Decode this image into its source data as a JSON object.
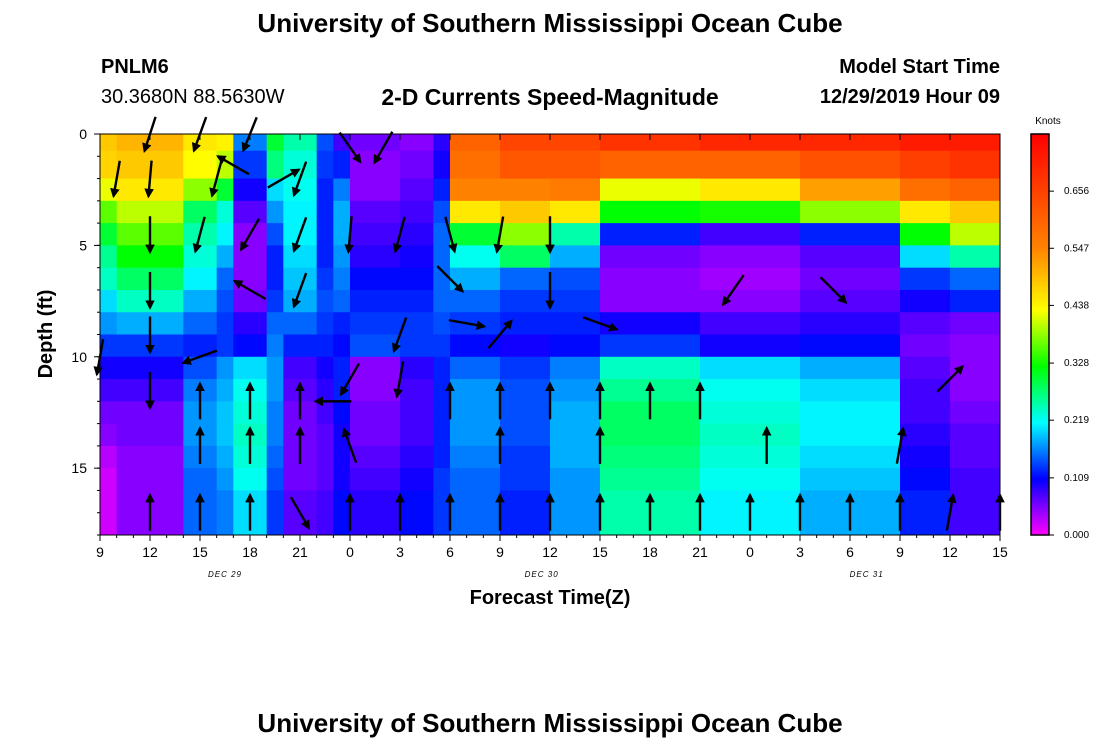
{
  "header": {
    "title": "University of Southern Mississippi Ocean Cube",
    "station": "PNLM6",
    "coords": "30.3680N 88.5630W",
    "subtitle": "2-D Currents Speed-Magnitude",
    "model_start_label": "Model Start Time",
    "model_start_value": "12/29/2019 Hour 09"
  },
  "footer": {
    "title": "University of Southern Mississippi Ocean Cube"
  },
  "chart_data": {
    "type": "heatmap",
    "title": "2-D Currents Speed-Magnitude",
    "xlabel": "Forecast Time(Z)",
    "ylabel": "Depth (ft)",
    "x_ticks": [
      "9",
      "12",
      "15",
      "18",
      "21",
      "0",
      "3",
      "6",
      "9",
      "12",
      "15",
      "18",
      "21",
      "0",
      "3",
      "6",
      "9",
      "12",
      "15"
    ],
    "x_tick_hours": [
      0,
      3,
      6,
      9,
      12,
      15,
      18,
      21,
      24,
      27,
      30,
      33,
      36,
      39,
      42,
      45,
      48,
      51,
      54
    ],
    "day_labels": [
      {
        "label": "DEC 29",
        "hour": 7.5
      },
      {
        "label": "DEC 30",
        "hour": 26.5
      },
      {
        "label": "DEC 31",
        "hour": 46
      }
    ],
    "xlim_hours": [
      0,
      54
    ],
    "y_ticks": [
      0,
      5,
      10,
      15
    ],
    "ylim": [
      0,
      18
    ],
    "y_inverted": true,
    "colorbar": {
      "unit": "Knots",
      "ticks": [
        "0.656",
        "0.547",
        "0.438",
        "0.328",
        "0.219",
        "0.109",
        "0.000"
      ],
      "tick_values": [
        0.656,
        0.547,
        0.438,
        0.328,
        0.219,
        0.109,
        0.0
      ],
      "range": [
        0,
        0.765
      ],
      "colors": [
        "#ff00ff",
        "#0000ff",
        "#00ffff",
        "#00ff00",
        "#ffff00",
        "#ff8000",
        "#ff0000"
      ]
    },
    "depth_rows": [
      0.0,
      1.5,
      2.5,
      3.5,
      4.5,
      5.5,
      6.5,
      7.5,
      8.5,
      9.5,
      10.5,
      11.5,
      12.5,
      13.5,
      14.5,
      15.5,
      16.5,
      17.5
    ],
    "speed_columns": [
      {
        "hours": [
          0,
          1
        ],
        "v": [
          0.48,
          0.47,
          0.42,
          0.36,
          0.3,
          0.26,
          0.24,
          0.2,
          0.17,
          0.13,
          0.1,
          0.08,
          0.06,
          0.05,
          0.03,
          0.02,
          0.02,
          0.02
        ]
      },
      {
        "hours": [
          1,
          5
        ],
        "v": [
          0.5,
          0.48,
          0.45,
          0.4,
          0.36,
          0.32,
          0.28,
          0.24,
          0.18,
          0.13,
          0.1,
          0.08,
          0.06,
          0.06,
          0.05,
          0.05,
          0.05,
          0.05
        ]
      },
      {
        "hours": [
          5,
          7
        ],
        "v": [
          0.45,
          0.43,
          0.38,
          0.28,
          0.25,
          0.23,
          0.21,
          0.18,
          0.15,
          0.12,
          0.14,
          0.16,
          0.17,
          0.17,
          0.16,
          0.15,
          0.15,
          0.15
        ]
      },
      {
        "hours": [
          7,
          8
        ],
        "v": [
          0.44,
          0.4,
          0.3,
          0.23,
          0.21,
          0.18,
          0.15,
          0.14,
          0.13,
          0.13,
          0.17,
          0.18,
          0.19,
          0.19,
          0.18,
          0.17,
          0.16,
          0.16
        ]
      },
      {
        "hours": [
          8,
          10
        ],
        "v": [
          0.16,
          0.13,
          0.1,
          0.07,
          0.05,
          0.05,
          0.05,
          0.06,
          0.09,
          0.11,
          0.2,
          0.22,
          0.23,
          0.24,
          0.23,
          0.22,
          0.2,
          0.2
        ]
      },
      {
        "hours": [
          10,
          11
        ],
        "v": [
          0.3,
          0.27,
          0.2,
          0.17,
          0.14,
          0.12,
          0.12,
          0.13,
          0.15,
          0.16,
          0.17,
          0.17,
          0.16,
          0.16,
          0.15,
          0.14,
          0.13,
          0.13
        ]
      },
      {
        "hours": [
          11,
          13
        ],
        "v": [
          0.25,
          0.23,
          0.22,
          0.21,
          0.21,
          0.2,
          0.19,
          0.18,
          0.15,
          0.12,
          0.08,
          0.07,
          0.06,
          0.06,
          0.06,
          0.06,
          0.07,
          0.07
        ]
      },
      {
        "hours": [
          13,
          14
        ],
        "v": [
          0.14,
          0.13,
          0.12,
          0.12,
          0.12,
          0.12,
          0.13,
          0.14,
          0.13,
          0.12,
          0.1,
          0.09,
          0.08,
          0.07,
          0.07,
          0.07,
          0.08,
          0.08
        ]
      },
      {
        "hours": [
          14,
          15
        ],
        "v": [
          0.08,
          0.12,
          0.16,
          0.18,
          0.18,
          0.17,
          0.16,
          0.15,
          0.12,
          0.11,
          0.12,
          0.12,
          0.11,
          0.1,
          0.1,
          0.1,
          0.11,
          0.11
        ]
      },
      {
        "hours": [
          15,
          18
        ],
        "v": [
          0.06,
          0.05,
          0.05,
          0.07,
          0.08,
          0.09,
          0.11,
          0.12,
          0.13,
          0.14,
          0.05,
          0.05,
          0.06,
          0.06,
          0.07,
          0.08,
          0.09,
          0.09
        ]
      },
      {
        "hours": [
          18,
          20
        ],
        "v": [
          0.05,
          0.06,
          0.07,
          0.08,
          0.09,
          0.1,
          0.11,
          0.12,
          0.13,
          0.13,
          0.09,
          0.08,
          0.08,
          0.08,
          0.09,
          0.1,
          0.11,
          0.11
        ]
      },
      {
        "hours": [
          20,
          21
        ],
        "v": [
          0.09,
          0.1,
          0.12,
          0.14,
          0.15,
          0.15,
          0.15,
          0.15,
          0.14,
          0.13,
          0.12,
          0.12,
          0.12,
          0.12,
          0.12,
          0.13,
          0.13,
          0.13
        ]
      },
      {
        "hours": [
          21,
          24
        ],
        "v": [
          0.6,
          0.58,
          0.55,
          0.45,
          0.3,
          0.22,
          0.18,
          0.15,
          0.13,
          0.11,
          0.15,
          0.17,
          0.17,
          0.17,
          0.16,
          0.15,
          0.15,
          0.15
        ]
      },
      {
        "hours": [
          24,
          27
        ],
        "v": [
          0.65,
          0.62,
          0.55,
          0.48,
          0.38,
          0.28,
          0.15,
          0.13,
          0.12,
          0.1,
          0.13,
          0.14,
          0.14,
          0.14,
          0.13,
          0.13,
          0.12,
          0.12
        ]
      },
      {
        "hours": [
          27,
          30
        ],
        "v": [
          0.65,
          0.62,
          0.56,
          0.45,
          0.25,
          0.18,
          0.14,
          0.13,
          0.12,
          0.11,
          0.16,
          0.17,
          0.18,
          0.18,
          0.18,
          0.17,
          0.17,
          0.17
        ]
      },
      {
        "hours": [
          30,
          36
        ],
        "v": [
          0.68,
          0.6,
          0.42,
          0.32,
          0.12,
          0.06,
          0.05,
          0.05,
          0.1,
          0.13,
          0.24,
          0.26,
          0.28,
          0.28,
          0.27,
          0.26,
          0.25,
          0.25
        ]
      },
      {
        "hours": [
          36,
          42
        ],
        "v": [
          0.7,
          0.6,
          0.45,
          0.33,
          0.08,
          0.05,
          0.04,
          0.05,
          0.08,
          0.1,
          0.2,
          0.22,
          0.23,
          0.24,
          0.23,
          0.22,
          0.21,
          0.21
        ]
      },
      {
        "hours": [
          42,
          48
        ],
        "v": [
          0.7,
          0.63,
          0.52,
          0.38,
          0.12,
          0.07,
          0.06,
          0.07,
          0.09,
          0.11,
          0.18,
          0.2,
          0.21,
          0.21,
          0.2,
          0.19,
          0.18,
          0.18
        ]
      },
      {
        "hours": [
          48,
          51
        ],
        "v": [
          0.72,
          0.66,
          0.58,
          0.45,
          0.32,
          0.2,
          0.13,
          0.1,
          0.07,
          0.06,
          0.07,
          0.08,
          0.08,
          0.09,
          0.1,
          0.11,
          0.12,
          0.12
        ]
      },
      {
        "hours": [
          51,
          54
        ],
        "v": [
          0.72,
          0.68,
          0.6,
          0.48,
          0.4,
          0.25,
          0.15,
          0.12,
          0.06,
          0.05,
          0.05,
          0.05,
          0.06,
          0.07,
          0.07,
          0.08,
          0.08,
          0.08
        ]
      }
    ],
    "arrows": [
      {
        "hour": 3,
        "depth": 0,
        "dir": 198
      },
      {
        "hour": 6,
        "depth": 0,
        "dir": 200
      },
      {
        "hour": 9,
        "depth": 0,
        "dir": 202
      },
      {
        "hour": 1,
        "depth": 2,
        "dir": 190
      },
      {
        "hour": 3,
        "depth": 2,
        "dir": 185
      },
      {
        "hour": 7,
        "depth": 2,
        "dir": 195
      },
      {
        "hour": 8,
        "depth": 1.4,
        "dir": 300
      },
      {
        "hour": 11,
        "depth": 2,
        "dir": 60
      },
      {
        "hour": 12,
        "depth": 2,
        "dir": 200
      },
      {
        "hour": 15,
        "depth": 0.6,
        "dir": 145
      },
      {
        "hour": 17,
        "depth": 0.6,
        "dir": 210
      },
      {
        "hour": 3,
        "depth": 4.5,
        "dir": 180
      },
      {
        "hour": 6,
        "depth": 4.5,
        "dir": 195
      },
      {
        "hour": 9,
        "depth": 4.5,
        "dir": 210
      },
      {
        "hour": 12,
        "depth": 4.5,
        "dir": 200
      },
      {
        "hour": 15,
        "depth": 4.5,
        "dir": 185
      },
      {
        "hour": 18,
        "depth": 4.5,
        "dir": 195
      },
      {
        "hour": 21,
        "depth": 4.5,
        "dir": 165
      },
      {
        "hour": 24,
        "depth": 4.5,
        "dir": 190
      },
      {
        "hour": 27,
        "depth": 4.5,
        "dir": 180
      },
      {
        "hour": 3,
        "depth": 7,
        "dir": 180
      },
      {
        "hour": 9,
        "depth": 7,
        "dir": 300
      },
      {
        "hour": 12,
        "depth": 7,
        "dir": 200
      },
      {
        "hour": 21,
        "depth": 6.5,
        "dir": 135
      },
      {
        "hour": 27,
        "depth": 7,
        "dir": 180
      },
      {
        "hour": 38,
        "depth": 7,
        "dir": 215
      },
      {
        "hour": 44,
        "depth": 7,
        "dir": 135
      },
      {
        "hour": 3,
        "depth": 9,
        "dir": 180
      },
      {
        "hour": 0,
        "depth": 10,
        "dir": 190
      },
      {
        "hour": 6,
        "depth": 10,
        "dir": 250
      },
      {
        "hour": 18,
        "depth": 9,
        "dir": 200
      },
      {
        "hour": 22,
        "depth": 8.5,
        "dir": 100
      },
      {
        "hour": 24,
        "depth": 9,
        "dir": 40
      },
      {
        "hour": 30,
        "depth": 8.5,
        "dir": 110
      },
      {
        "hour": 3,
        "depth": 11.5,
        "dir": 180
      },
      {
        "hour": 6,
        "depth": 12,
        "dir": 0
      },
      {
        "hour": 9,
        "depth": 12,
        "dir": 0
      },
      {
        "hour": 12,
        "depth": 12,
        "dir": 0
      },
      {
        "hour": 14,
        "depth": 12,
        "dir": 270
      },
      {
        "hour": 15,
        "depth": 11,
        "dir": 210
      },
      {
        "hour": 18,
        "depth": 11,
        "dir": 190
      },
      {
        "hour": 21,
        "depth": 12,
        "dir": 0
      },
      {
        "hour": 24,
        "depth": 12,
        "dir": 0
      },
      {
        "hour": 27,
        "depth": 12,
        "dir": 0
      },
      {
        "hour": 30,
        "depth": 12,
        "dir": 0
      },
      {
        "hour": 33,
        "depth": 12,
        "dir": 0
      },
      {
        "hour": 36,
        "depth": 12,
        "dir": 0
      },
      {
        "hour": 51,
        "depth": 11,
        "dir": 45
      },
      {
        "hour": 6,
        "depth": 14,
        "dir": 0
      },
      {
        "hour": 9,
        "depth": 14,
        "dir": 0
      },
      {
        "hour": 12,
        "depth": 14,
        "dir": 0
      },
      {
        "hour": 15,
        "depth": 14,
        "dir": 340
      },
      {
        "hour": 24,
        "depth": 14,
        "dir": 0
      },
      {
        "hour": 30,
        "depth": 14,
        "dir": 0
      },
      {
        "hour": 40,
        "depth": 14,
        "dir": 0
      },
      {
        "hour": 48,
        "depth": 14,
        "dir": 10
      },
      {
        "hour": 3,
        "depth": 17,
        "dir": 0
      },
      {
        "hour": 6,
        "depth": 17,
        "dir": 0
      },
      {
        "hour": 9,
        "depth": 17,
        "dir": 0
      },
      {
        "hour": 12,
        "depth": 17,
        "dir": 150
      },
      {
        "hour": 15,
        "depth": 17,
        "dir": 0
      },
      {
        "hour": 18,
        "depth": 17,
        "dir": 0
      },
      {
        "hour": 21,
        "depth": 17,
        "dir": 0
      },
      {
        "hour": 24,
        "depth": 17,
        "dir": 0
      },
      {
        "hour": 27,
        "depth": 17,
        "dir": 0
      },
      {
        "hour": 30,
        "depth": 17,
        "dir": 0
      },
      {
        "hour": 33,
        "depth": 17,
        "dir": 0
      },
      {
        "hour": 36,
        "depth": 17,
        "dir": 0
      },
      {
        "hour": 39,
        "depth": 17,
        "dir": 0
      },
      {
        "hour": 42,
        "depth": 17,
        "dir": 0
      },
      {
        "hour": 45,
        "depth": 17,
        "dir": 0
      },
      {
        "hour": 48,
        "depth": 17,
        "dir": 0
      },
      {
        "hour": 51,
        "depth": 17,
        "dir": 10
      },
      {
        "hour": 54,
        "depth": 17,
        "dir": 0
      }
    ]
  }
}
